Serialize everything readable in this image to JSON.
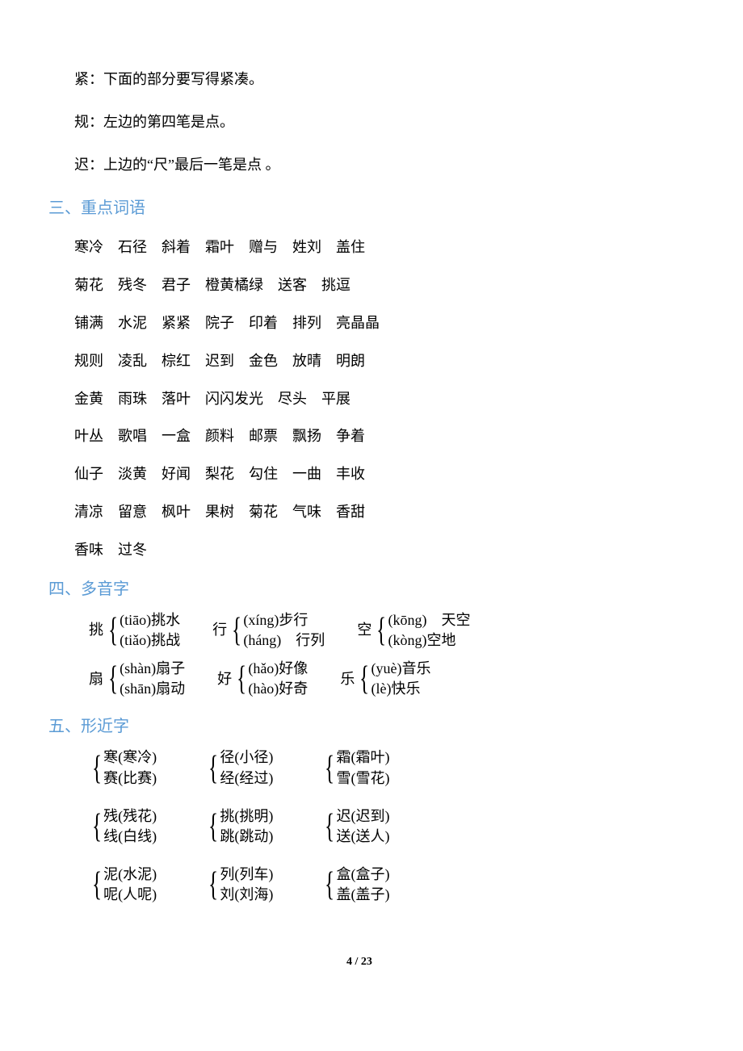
{
  "notes": [
    "紧：下面的部分要写得紧凑。",
    "规：左边的第四笔是点。",
    "迟：上边的“尺”最后一笔是点 。"
  ],
  "sec3": {
    "heading": "三、重点词语"
  },
  "words": [
    [
      "寒冷",
      "石径",
      "斜着",
      "霜叶",
      "赠与",
      "姓刘",
      "盖住"
    ],
    [
      "菊花",
      "残冬",
      "君子",
      "橙黄橘绿",
      "送客",
      "挑逗"
    ],
    [
      "铺满",
      "水泥",
      "紧紧",
      "院子",
      "印着",
      "排列",
      "亮晶晶"
    ],
    [
      "规则",
      "凌乱",
      "棕红",
      "迟到",
      "金色",
      "放晴",
      "明朗"
    ],
    [
      "金黄",
      "雨珠",
      "落叶",
      "闪闪发光",
      "尽头",
      "平展"
    ],
    [
      "叶丛",
      "歌唱",
      "一盒",
      "颜料",
      "邮票",
      "飘扬",
      "争着"
    ],
    [
      "仙子",
      "淡黄",
      "好闻",
      "梨花",
      "勾住",
      "一曲",
      "丰收"
    ],
    [
      "清凉",
      "留意",
      "枫叶",
      "果树",
      "菊花",
      "气味",
      "香甜"
    ],
    [
      "香味",
      "过冬"
    ]
  ],
  "sec4": {
    "heading": "四、多音字"
  },
  "poly": [
    [
      {
        "lead": "挑",
        "a": "(tiāo)挑水",
        "b": "(tiǎo)挑战"
      },
      {
        "lead": "行",
        "a": "(xíng)步行",
        "b": "(háng)　行列"
      },
      {
        "lead": "空",
        "a": "(kōng)　天空",
        "b": "(kòng)空地"
      }
    ],
    [
      {
        "lead": "扇",
        "a": "(shàn)扇子",
        "b": "(shān)扇动"
      },
      {
        "lead": "好",
        "a": "(hǎo)好像",
        "b": "(hào)好奇"
      },
      {
        "lead": "乐",
        "a": "(yuè)音乐",
        "b": "(lè)快乐"
      }
    ]
  ],
  "sec5": {
    "heading": "五、形近字"
  },
  "near": [
    [
      {
        "a": "寒(寒冷)",
        "b": "赛(比赛)"
      },
      {
        "a": "径(小径)",
        "b": "经(经过)"
      },
      {
        "a": "霜(霜叶)",
        "b": "雪(雪花)"
      }
    ],
    [
      {
        "a": "残(残花)",
        "b": "线(白线)"
      },
      {
        "a": "挑(挑明)",
        "b": "跳(跳动)"
      },
      {
        "a": "迟(迟到)",
        "b": "送(送人)"
      }
    ],
    [
      {
        "a": "泥(水泥)",
        "b": "呢(人呢)"
      },
      {
        "a": "列(列车)",
        "b": "刘(刘海)"
      },
      {
        "a": "盒(盒子)",
        "b": "盖(盖子)"
      }
    ]
  ],
  "footer": "4 / 23"
}
